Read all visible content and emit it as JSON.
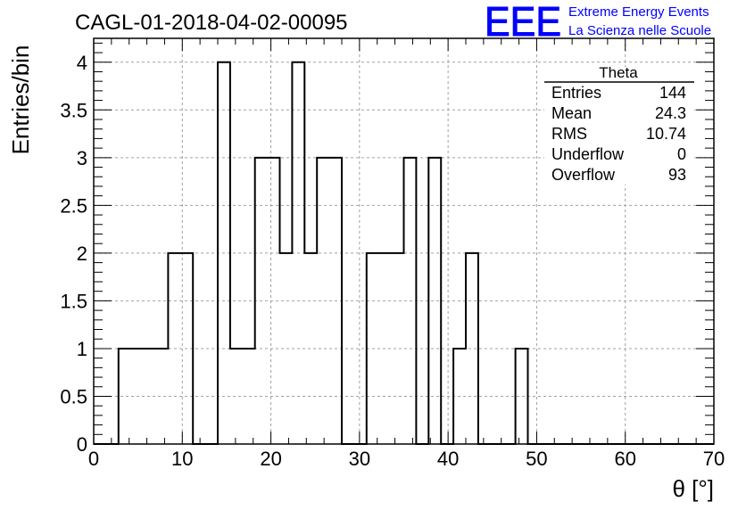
{
  "chart_data": {
    "type": "bar",
    "title": "CAGL-01-2018-04-02-00095",
    "xlabel": "θ [°]",
    "ylabel": "Entries/bin",
    "xlim": [
      0,
      70
    ],
    "ylim": [
      0,
      4.25
    ],
    "grid": true,
    "bin_width": 1.4,
    "x_ticks": [
      0,
      10,
      20,
      30,
      40,
      50,
      60,
      70
    ],
    "y_ticks": [
      0,
      0.5,
      1,
      1.5,
      2,
      2.5,
      3,
      3.5,
      4
    ],
    "bin_edges_start": 0,
    "values": [
      0,
      0,
      1,
      1,
      1,
      1,
      2,
      2,
      0,
      0,
      4,
      1,
      1,
      3,
      3,
      2,
      4,
      2,
      3,
      3,
      0,
      0,
      2,
      2,
      2,
      3,
      0,
      3,
      0,
      1,
      2,
      0,
      0,
      0,
      1,
      0,
      0,
      0,
      0,
      0,
      0,
      0,
      0,
      0,
      0,
      0,
      0,
      0,
      0,
      0
    ],
    "logo": {
      "mark": "EEE",
      "line1": "Extreme Energy Events",
      "line2": "La Scienza nelle Scuole",
      "color": "#0000ff"
    },
    "stats_box": {
      "title": "Theta",
      "rows": [
        {
          "label": "Entries",
          "value": "144"
        },
        {
          "label": "Mean",
          "value": "24.3"
        },
        {
          "label": "RMS",
          "value": "10.74"
        },
        {
          "label": "Underflow",
          "value": "0"
        },
        {
          "label": "Overflow",
          "value": "93"
        }
      ]
    }
  }
}
